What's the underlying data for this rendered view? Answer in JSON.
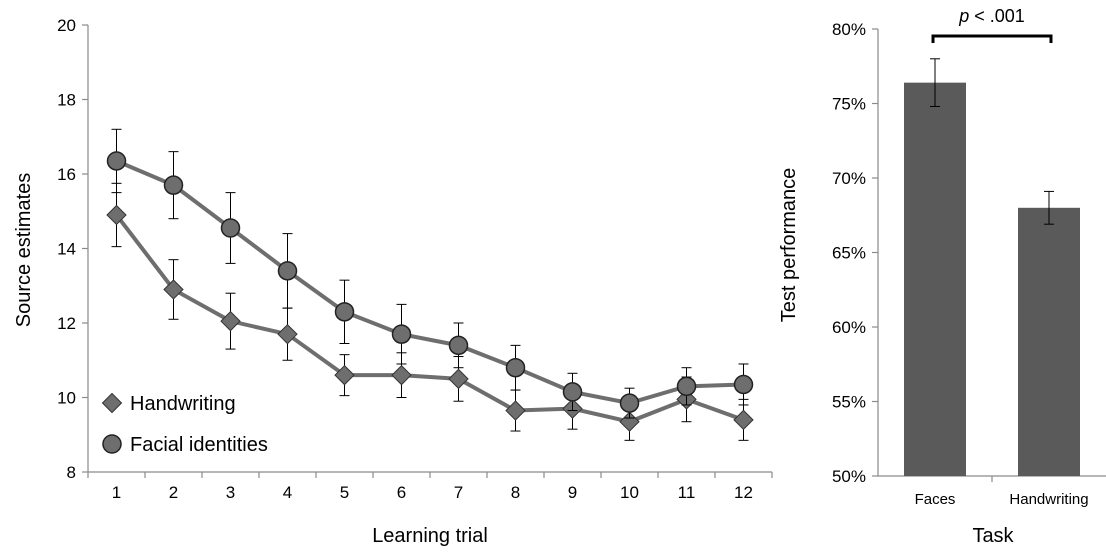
{
  "chart_data": [
    {
      "type": "line",
      "xlabel": "Learning trial",
      "ylabel": "Source estimates",
      "ylim": [
        8,
        20
      ],
      "yticks": [
        "8",
        "10",
        "12",
        "14",
        "16",
        "18",
        "20"
      ],
      "x": [
        "1",
        "2",
        "3",
        "4",
        "5",
        "6",
        "7",
        "8",
        "9",
        "10",
        "11",
        "12"
      ],
      "grid": false,
      "legend_position": "bottom-left",
      "series": [
        {
          "name": "Handwriting",
          "marker": "diamond",
          "color": "#6e6e6e",
          "values": [
            14.9,
            12.9,
            12.05,
            11.7,
            10.6,
            10.6,
            10.5,
            9.65,
            9.7,
            9.35,
            9.95,
            9.4
          ],
          "errors": [
            0.85,
            0.8,
            0.75,
            0.7,
            0.55,
            0.6,
            0.6,
            0.55,
            0.55,
            0.5,
            0.6,
            0.55
          ]
        },
        {
          "name": "Facial identities",
          "marker": "circle",
          "color": "#6e6e6e",
          "values": [
            16.35,
            15.7,
            14.55,
            13.4,
            12.3,
            11.7,
            11.4,
            10.8,
            10.15,
            9.85,
            10.3,
            10.35
          ],
          "errors": [
            0.85,
            0.9,
            0.95,
            1.0,
            0.85,
            0.8,
            0.6,
            0.6,
            0.5,
            0.4,
            0.5,
            0.55
          ]
        }
      ]
    },
    {
      "type": "bar",
      "xlabel": "Task",
      "ylabel": "Test performance",
      "ylim": [
        50,
        80
      ],
      "yticks": [
        "50%",
        "55%",
        "60%",
        "65%",
        "70%",
        "75%",
        "80%"
      ],
      "categories": [
        "Faces",
        "Handwriting"
      ],
      "values": [
        76.4,
        68.0
      ],
      "errors": [
        1.6,
        1.1
      ],
      "bar_color": "#5a5a5a",
      "annotation": {
        "italic": "p",
        "text": " < .001"
      }
    }
  ]
}
